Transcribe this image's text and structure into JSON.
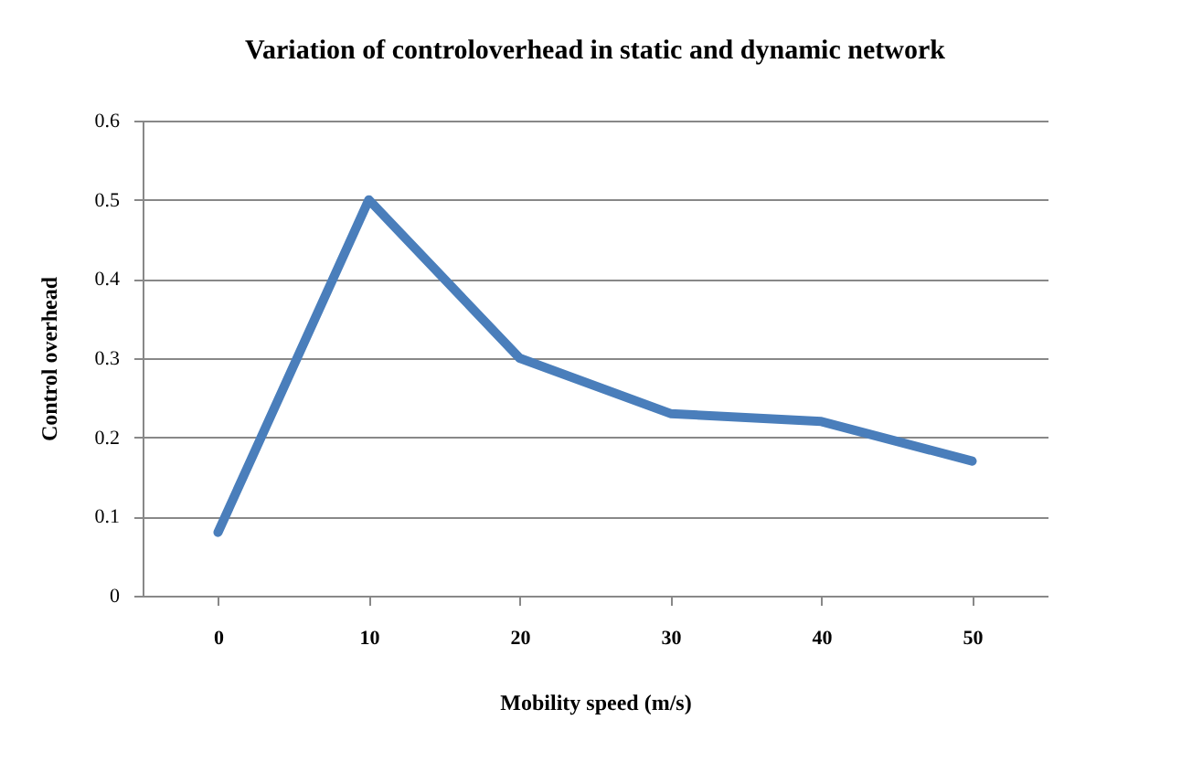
{
  "chart_data": {
    "type": "line",
    "title": "Variation of controloverhead in static and dynamic network",
    "xlabel": "Mobility speed (m/s)",
    "ylabel": "Control overhead",
    "categories": [
      "0",
      "10",
      "20",
      "30",
      "40",
      "50"
    ],
    "series": [
      {
        "color": "#4a7ebb",
        "values": [
          0.08,
          0.5,
          0.3,
          0.23,
          0.22,
          0.17
        ]
      }
    ],
    "ylim": [
      0,
      0.6
    ],
    "yticks": [
      0,
      0.1,
      0.2,
      0.3,
      0.4,
      0.5,
      0.6
    ],
    "grid": "y",
    "marker": "none",
    "line_style": "solid"
  }
}
